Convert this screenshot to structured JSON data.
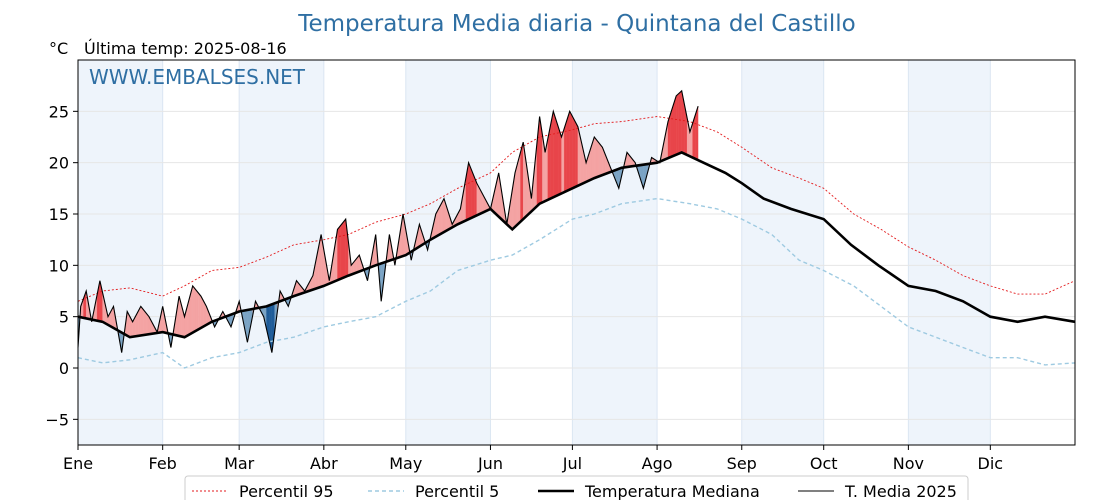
{
  "chart_data": {
    "type": "line",
    "title": "Temperatura Media diaria - Quintana del Castillo",
    "unit_label": "°C",
    "last_update_label": "Última temp: 2025-08-16",
    "watermark": "WWW.EMBALSES.NET",
    "ylim": [
      -7.5,
      30.0
    ],
    "yticks": [
      -5,
      0,
      5,
      10,
      15,
      20,
      25
    ],
    "ytick_labels": [
      "−5",
      "0",
      "5",
      "10",
      "15",
      "20",
      "25"
    ],
    "xlim_day": [
      1,
      366
    ],
    "months": [
      {
        "label": "Ene",
        "day": 1
      },
      {
        "label": "Feb",
        "day": 32
      },
      {
        "label": "Mar",
        "day": 60
      },
      {
        "label": "Abr",
        "day": 91
      },
      {
        "label": "May",
        "day": 121
      },
      {
        "label": "Jun",
        "day": 152
      },
      {
        "label": "Jul",
        "day": 182
      },
      {
        "label": "Ago",
        "day": 213
      },
      {
        "label": "Sep",
        "day": 244
      },
      {
        "label": "Oct",
        "day": 274
      },
      {
        "label": "Nov",
        "day": 305
      },
      {
        "label": "Dic",
        "day": 335
      }
    ],
    "grid": true,
    "colors": {
      "p95": "#e31a1c",
      "p5": "#9ecae1",
      "median": "#000000",
      "current": "#000000",
      "above_fill": "#f4a3a3",
      "above_strong_fill": "#e8454a",
      "below_fill": "#7aa3c4",
      "below_strong_fill": "#1f5c99",
      "month_band": "#eef4fb"
    },
    "legend": [
      {
        "label": "Percentil 95",
        "style": "p95"
      },
      {
        "label": "Percentil 5",
        "style": "p5"
      },
      {
        "label": "Temperatura Mediana",
        "style": "median"
      },
      {
        "label": "T. Media 2025",
        "style": "current"
      }
    ],
    "series": [
      {
        "name": "Percentil 95",
        "x": [
          1,
          10,
          20,
          32,
          40,
          50,
          60,
          70,
          80,
          91,
          100,
          110,
          121,
          130,
          140,
          152,
          160,
          170,
          182,
          190,
          200,
          213,
          225,
          235,
          244,
          255,
          265,
          274,
          285,
          295,
          305,
          315,
          325,
          335,
          345,
          355,
          366
        ],
        "y": [
          6.5,
          7.5,
          7.8,
          7.0,
          8.0,
          9.5,
          9.8,
          10.8,
          12.0,
          12.5,
          13.0,
          14.2,
          15.0,
          16.0,
          17.5,
          19.0,
          21.0,
          22.5,
          23.2,
          23.8,
          24.0,
          24.5,
          24.0,
          23.0,
          21.5,
          19.5,
          18.5,
          17.5,
          15.0,
          13.5,
          11.8,
          10.5,
          9.0,
          8.0,
          7.2,
          7.2,
          8.5
        ]
      },
      {
        "name": "Percentil 5",
        "x": [
          1,
          10,
          20,
          32,
          40,
          50,
          60,
          70,
          80,
          91,
          100,
          110,
          121,
          130,
          140,
          152,
          160,
          170,
          182,
          190,
          200,
          213,
          225,
          235,
          244,
          255,
          265,
          274,
          285,
          295,
          305,
          315,
          325,
          335,
          345,
          355,
          366
        ],
        "y": [
          1.0,
          0.5,
          0.8,
          1.5,
          0.0,
          1.0,
          1.5,
          2.5,
          3.0,
          4.0,
          4.5,
          5.0,
          6.5,
          7.5,
          9.5,
          10.5,
          11.0,
          12.5,
          14.5,
          15.0,
          16.0,
          16.5,
          16.0,
          15.5,
          14.5,
          13.0,
          10.5,
          9.5,
          8.0,
          6.0,
          4.0,
          3.0,
          2.0,
          1.0,
          1.0,
          0.3,
          0.5
        ]
      },
      {
        "name": "Temperatura Mediana",
        "x": [
          1,
          10,
          20,
          32,
          40,
          50,
          60,
          70,
          80,
          91,
          100,
          110,
          121,
          130,
          140,
          152,
          160,
          170,
          182,
          190,
          200,
          213,
          222,
          230,
          238,
          244,
          252,
          262,
          274,
          284,
          294,
          305,
          315,
          325,
          335,
          345,
          355,
          366
        ],
        "y": [
          5.0,
          4.5,
          3.0,
          3.5,
          3.0,
          4.5,
          5.5,
          6.0,
          7.0,
          8.0,
          9.0,
          10.0,
          11.0,
          12.5,
          14.0,
          15.5,
          13.5,
          16.0,
          17.5,
          18.5,
          19.5,
          20.0,
          21.0,
          20.0,
          19.0,
          18.0,
          16.5,
          15.5,
          14.5,
          12.0,
          10.0,
          8.0,
          7.5,
          6.5,
          5.0,
          4.5,
          5.0,
          4.5
        ]
      },
      {
        "name": "T. Media 2025",
        "x": [
          1,
          2,
          4,
          6,
          9,
          12,
          14,
          17,
          19,
          21,
          24,
          27,
          30,
          32,
          35,
          38,
          40,
          43,
          46,
          48,
          51,
          54,
          57,
          60,
          63,
          66,
          69,
          72,
          75,
          78,
          81,
          84,
          87,
          90,
          93,
          96,
          99,
          101,
          104,
          107,
          110,
          112,
          115,
          117,
          120,
          123,
          126,
          129,
          132,
          135,
          138,
          141,
          144,
          147,
          150,
          152,
          155,
          158,
          161,
          164,
          167,
          170,
          172,
          175,
          178,
          181,
          184,
          187,
          190,
          193,
          196,
          199,
          202,
          205,
          208,
          211,
          214,
          217,
          220,
          222,
          225,
          228
        ],
        "y": [
          2.0,
          6.0,
          7.5,
          4.5,
          8.5,
          5.0,
          6.0,
          1.5,
          5.5,
          4.5,
          6.0,
          5.0,
          3.5,
          6.0,
          2.0,
          7.0,
          5.0,
          8.0,
          7.0,
          6.0,
          4.0,
          5.5,
          4.0,
          6.5,
          2.5,
          6.5,
          5.0,
          1.5,
          7.5,
          6.0,
          8.5,
          7.5,
          9.0,
          13.0,
          8.5,
          13.5,
          14.5,
          10.0,
          11.0,
          8.5,
          13.0,
          6.5,
          13.0,
          10.0,
          15.0,
          10.5,
          14.0,
          11.5,
          15.0,
          16.5,
          14.0,
          15.5,
          20.0,
          18.0,
          16.5,
          15.5,
          19.0,
          14.0,
          19.0,
          22.0,
          16.5,
          24.5,
          21.0,
          25.0,
          22.5,
          25.0,
          23.5,
          20.0,
          22.5,
          21.5,
          19.5,
          17.5,
          21.0,
          20.0,
          17.5,
          20.5,
          20.0,
          24.0,
          26.5,
          27.0,
          23.0,
          25.5
        ]
      }
    ]
  }
}
